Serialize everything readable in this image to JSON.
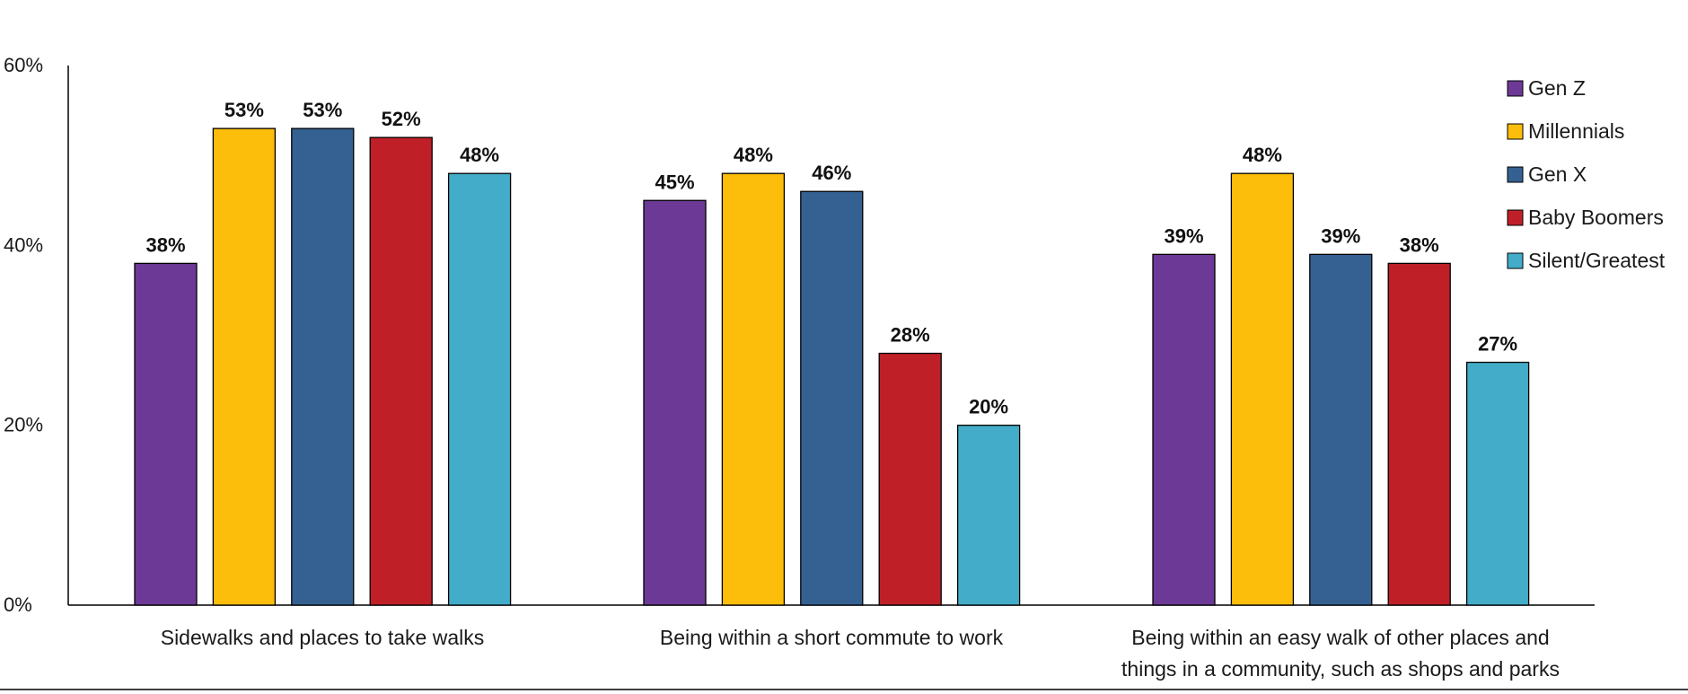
{
  "chart_data": {
    "type": "bar",
    "categories": [
      [
        "Sidewalks and places to take walks"
      ],
      [
        "Being within a short commute to work"
      ],
      [
        "Being within an easy walk of other places and",
        "things in a community, such as shops and parks"
      ]
    ],
    "series": [
      {
        "name": "Gen Z",
        "color": "#6d3996",
        "values": [
          38,
          45,
          39
        ],
        "labels": [
          "38%",
          "45%",
          "39%"
        ]
      },
      {
        "name": "Millennials",
        "color": "#fcbd0b",
        "values": [
          53,
          48,
          48
        ],
        "labels": [
          "53%",
          "48%",
          "48%"
        ]
      },
      {
        "name": "Gen X",
        "color": "#346192",
        "values": [
          53,
          46,
          39
        ],
        "labels": [
          "53%",
          "46%",
          "39%"
        ]
      },
      {
        "name": "Baby Boomers",
        "color": "#bf2027",
        "values": [
          52,
          28,
          38
        ],
        "labels": [
          "52%",
          "28%",
          "38%"
        ]
      },
      {
        "name": "Silent/Greatest",
        "color": "#43acc8",
        "values": [
          48,
          20,
          27
        ],
        "labels": [
          "48%",
          "20%",
          "27%"
        ]
      }
    ],
    "yticks": [
      {
        "value": 0,
        "label": "0%"
      },
      {
        "value": 20,
        "label": "20%"
      },
      {
        "value": 40,
        "label": "40%"
      },
      {
        "value": 60,
        "label": "60%"
      }
    ],
    "ylim": [
      0,
      60
    ],
    "title": "",
    "xlabel": "",
    "ylabel": "",
    "legend_position": "top-right",
    "grid": false
  }
}
